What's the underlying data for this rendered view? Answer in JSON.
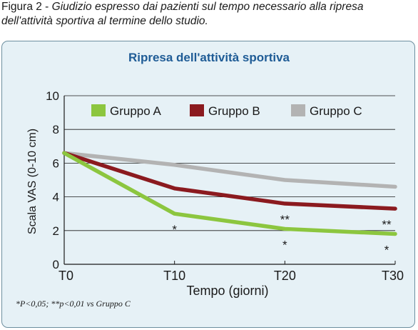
{
  "caption": {
    "prefix": "Figura 2 - ",
    "text": "Giudizio espresso dai pazienti sul tempo necessario alla ripresa dell'attività sportiva al termine dello studio."
  },
  "colors": {
    "title": "#1f5c96",
    "panel_bg": "#e6f1f6",
    "panel_border": "#6d8f9f",
    "grid": "#1a1a1a"
  },
  "chart_data": {
    "type": "line",
    "title": "Ripresa dell'attività sportiva",
    "xlabel": "Tempo (giorni)",
    "ylabel": "Scala VAS (0-10 cm)",
    "x": [
      "T0",
      "T10",
      "T20",
      "T30"
    ],
    "ylim": [
      0,
      10
    ],
    "yticks": [
      "0",
      "2",
      "4",
      "6",
      "8",
      "10"
    ],
    "grid": "horizontal",
    "legend_position": "top",
    "series": [
      {
        "name": "Gruppo A",
        "color": "#8cc63f",
        "values": [
          6.6,
          3.0,
          2.1,
          1.8
        ],
        "annotations": [
          "",
          "*",
          "*",
          "*"
        ]
      },
      {
        "name": "Gruppo B",
        "color": "#8b1a1f",
        "values": [
          6.6,
          4.5,
          3.6,
          3.3
        ],
        "annotations": [
          "",
          "",
          "**",
          "**"
        ]
      },
      {
        "name": "Gruppo C",
        "color": "#b3b3b3",
        "values": [
          6.6,
          5.9,
          5.0,
          4.6
        ],
        "annotations": [
          "",
          "",
          "",
          ""
        ]
      }
    ]
  },
  "footnote": "*P<0,05; **p<0,01 vs Gruppo C"
}
